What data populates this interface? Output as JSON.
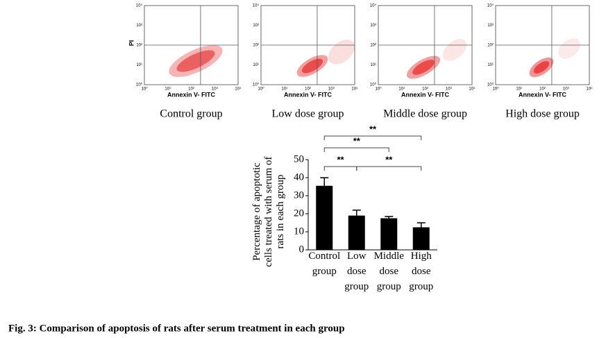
{
  "flow_panels": [
    {
      "group": "Control group",
      "xlabel": "Annexin V- FITC",
      "ylabel": "PI",
      "gate": {
        "x": 250,
        "y": 100
      }
    },
    {
      "group": "Low dose group",
      "xlabel": "Annexin V- FITC",
      "gate": {
        "x": 250,
        "y": 100
      }
    },
    {
      "group": "Middle dose group",
      "xlabel": "Annexin V- FITC",
      "gate": {
        "x": 250,
        "y": 100
      }
    },
    {
      "group": "High dose group",
      "xlabel": "Annexin V- FITC",
      "gate": {
        "x": 250,
        "y": 100
      }
    }
  ],
  "flow_axes": {
    "log_scale": true,
    "xlim": [
      1,
      10000
    ],
    "ylim": [
      1,
      10000
    ],
    "ticks": [
      {
        "value": 1,
        "label": "10⁰"
      },
      {
        "value": 10,
        "label": "10¹"
      },
      {
        "value": 100,
        "label": "10²"
      },
      {
        "value": 1000,
        "label": "10³"
      },
      {
        "value": 10000,
        "label": "10⁴"
      }
    ]
  },
  "chart_data": {
    "type": "bar",
    "ylabel": "Percentage of apoptotic cells treated with serum of rats in each group",
    "categories": [
      "Control group",
      "Low dose group",
      "Middle dose group",
      "High dose group"
    ],
    "values": [
      35.5,
      19,
      17.5,
      12.5
    ],
    "errors": [
      4.5,
      3,
      1,
      2.5
    ],
    "color": "#000000",
    "ylim": [
      0,
      50
    ],
    "yticks": [
      0,
      10,
      20,
      30,
      40,
      50
    ],
    "significance": [
      {
        "from": 0,
        "to": 3,
        "label": "**"
      },
      {
        "from": 0,
        "to": 2,
        "label": "**"
      },
      {
        "from": 0,
        "to": 1,
        "label": "**"
      },
      {
        "from": 1,
        "to": 3,
        "label": "**"
      }
    ]
  },
  "caption": "Fig. 3: Comparison of apoptosis of rats after serum treatment in each group"
}
